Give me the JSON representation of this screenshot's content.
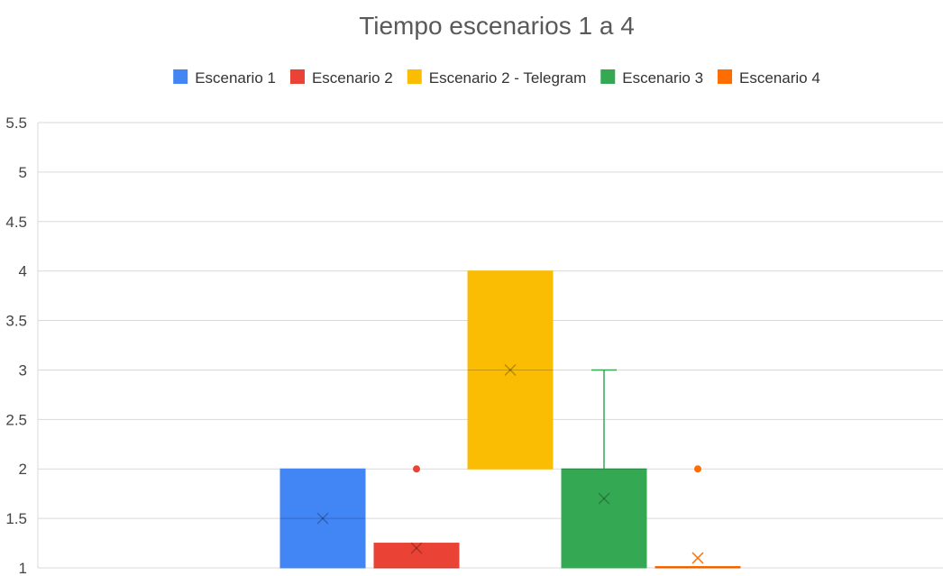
{
  "chart_data": {
    "type": "box",
    "title": "Tiempo escenarios 1 a 4",
    "xlabel": "",
    "ylabel": "",
    "ylim": [
      1,
      5.5
    ],
    "yticks": [
      "1",
      "1.5",
      "2",
      "2.5",
      "3",
      "3.5",
      "4",
      "4.5",
      "5",
      "5.5"
    ],
    "grid": true,
    "legend_position": "top",
    "series": [
      {
        "name": "Escenario 1",
        "color": "#4285f4",
        "min": 1,
        "q1": 1,
        "median": 1.5,
        "q3": 2,
        "max": 2,
        "mean": 1.5,
        "outliers": []
      },
      {
        "name": "Escenario 2",
        "color": "#ea4335",
        "min": 1,
        "q1": 1,
        "median": 1,
        "q3": 1.25,
        "max": 1.25,
        "mean": 1.2,
        "outliers": [
          2
        ]
      },
      {
        "name": "Escenario 2 - Telegram",
        "color": "#fbbc04",
        "min": 2,
        "q1": 2,
        "median": 3,
        "q3": 4,
        "max": 4,
        "mean": 3,
        "outliers": []
      },
      {
        "name": "Escenario 3",
        "color": "#34a853",
        "min": 1,
        "q1": 1,
        "median": 2,
        "q3": 2,
        "max": 3,
        "mean": 1.7,
        "outliers": []
      },
      {
        "name": "Escenario 4",
        "color": "#ff6d01",
        "min": 1,
        "q1": 1,
        "median": 1,
        "q3": 1,
        "max": 1,
        "mean": 1.1,
        "outliers": [
          2
        ]
      }
    ]
  }
}
